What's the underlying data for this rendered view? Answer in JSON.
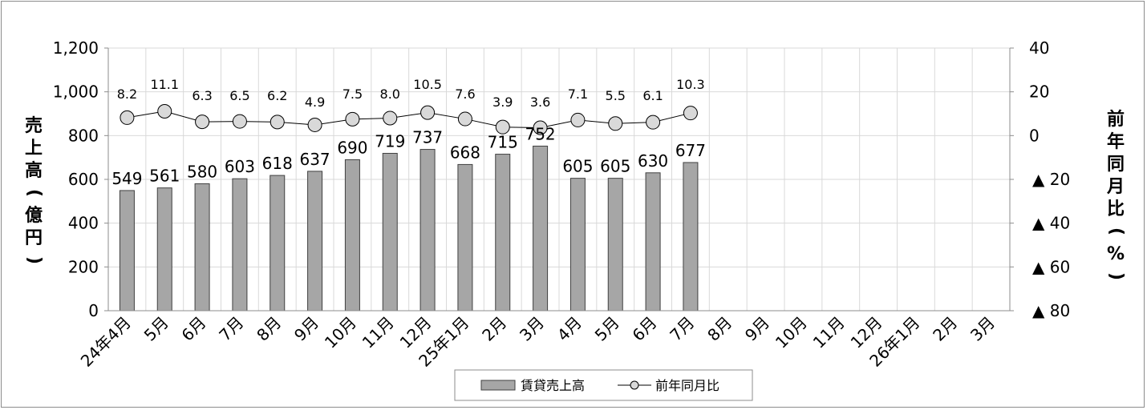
{
  "chart_data": {
    "type": "bar",
    "categories": [
      "24年4月",
      "5月",
      "6月",
      "7月",
      "8月",
      "9月",
      "10月",
      "11月",
      "12月",
      "25年1月",
      "2月",
      "3月",
      "4月",
      "5月",
      "6月",
      "7月",
      "8月",
      "9月",
      "10月",
      "11月",
      "12月",
      "26年1月",
      "2月",
      "3月"
    ],
    "series": [
      {
        "name": "賃貸売上高",
        "type": "bar",
        "axis": "left",
        "values": [
          549,
          561,
          580,
          603,
          618,
          637,
          690,
          719,
          737,
          668,
          715,
          752,
          605,
          605,
          630,
          677,
          null,
          null,
          null,
          null,
          null,
          null,
          null,
          null
        ],
        "color": "#a6a6a6"
      },
      {
        "name": "前年同月比",
        "type": "line",
        "axis": "right",
        "values": [
          8.2,
          11.1,
          6.3,
          6.5,
          6.2,
          4.9,
          7.5,
          8.0,
          10.5,
          7.6,
          3.9,
          3.6,
          7.1,
          5.5,
          6.1,
          10.3,
          null,
          null,
          null,
          null,
          null,
          null,
          null,
          null
        ],
        "value_labels": [
          "8.2",
          "11.1",
          "6.3",
          "6.5",
          "6.2",
          "4.9",
          "7.5",
          "8.0",
          "10.5",
          "7.6",
          "3.9",
          "3.6",
          "7.1",
          "5.5",
          "6.1",
          "10.3"
        ],
        "marker_fill": "#d9d9d9"
      }
    ],
    "ylabel": "売上高（億円）",
    "y2label": "前年同月比（%）",
    "ylim": [
      0,
      1200
    ],
    "y_ticks": [
      0,
      200,
      400,
      600,
      800,
      1000,
      1200
    ],
    "y_tick_labels": [
      "0",
      "200",
      "400",
      "600",
      "800",
      "1,000",
      "1,200"
    ],
    "y2lim": [
      -80,
      40
    ],
    "y2_ticks": [
      -80,
      -60,
      -40,
      -20,
      0,
      20,
      40
    ],
    "y2_tick_labels": [
      "▲ 80",
      "▲ 60",
      "▲ 40",
      "▲ 20",
      "0",
      "20",
      "40"
    ],
    "grid": true,
    "legend_position": "bottom"
  },
  "legend": {
    "bar_label": "賃貸売上高",
    "line_label": "前年同月比"
  },
  "colors": {
    "bar": "#a6a6a6",
    "bar_stroke": "#404040",
    "grid": "#d9d9d9",
    "marker": "#d9d9d9"
  }
}
